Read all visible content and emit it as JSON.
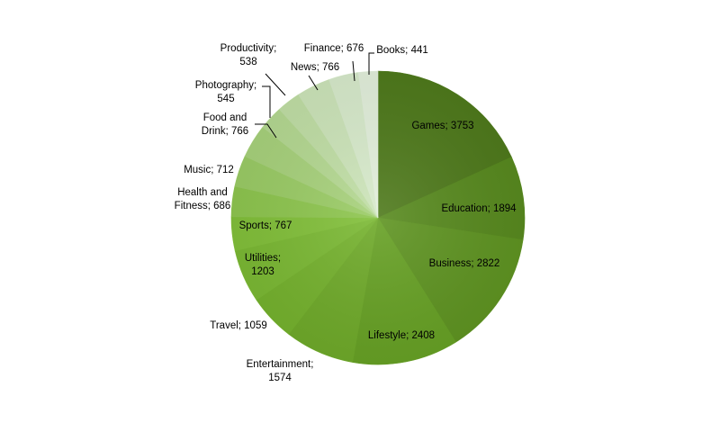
{
  "chart_data": {
    "type": "pie",
    "title": "",
    "slices": [
      {
        "category": "Games",
        "value": 3753,
        "label": "Games; 3753",
        "color": "#4f7a1c"
      },
      {
        "category": "Education",
        "value": 1894,
        "label": "Education; 1894",
        "color": "#588a1f"
      },
      {
        "category": "Business",
        "value": 2822,
        "label": "Business; 2822",
        "color": "#5f9422"
      },
      {
        "category": "Lifestyle",
        "value": 2408,
        "label": "Lifestyle; 2408",
        "color": "#67a125"
      },
      {
        "category": "Entertainment",
        "value": 1574,
        "label": "Entertainment;|1574",
        "color": "#6faa2a"
      },
      {
        "category": "Travel",
        "value": 1059,
        "label": "Travel; 1059",
        "color": "#75b22e"
      },
      {
        "category": "Utilities",
        "value": 1203,
        "label": "Utilities;|1203",
        "color": "#7bb934"
      },
      {
        "category": "Sports",
        "value": 767,
        "label": "Sports; 767",
        "color": "#82c03a"
      },
      {
        "category": "Health and Fitness",
        "value": 686,
        "label": "Health and|Fitness; 686",
        "color": "#8ec64f"
      },
      {
        "category": "Music",
        "value": 712,
        "label": "Music; 712",
        "color": "#9bcc66"
      },
      {
        "category": "Food and Drink",
        "value": 766,
        "label": "Food and|Drink; 766",
        "color": "#a8d27c"
      },
      {
        "category": "Photography",
        "value": 545,
        "label": "Photography;|545",
        "color": "#b5d992"
      },
      {
        "category": "Productivity",
        "value": 538,
        "label": "Productivity;|538",
        "color": "#c1dfa6"
      },
      {
        "category": "News",
        "value": 766,
        "label": "News; 766",
        "color": "#cde5ba"
      },
      {
        "category": "Finance",
        "value": 676,
        "label": "Finance; 676",
        "color": "#d8ebcc"
      },
      {
        "category": "Books",
        "value": 441,
        "label": "Books; 441",
        "color": "#e3f0dc"
      }
    ],
    "legend": "none",
    "data_labels": "category; value"
  }
}
